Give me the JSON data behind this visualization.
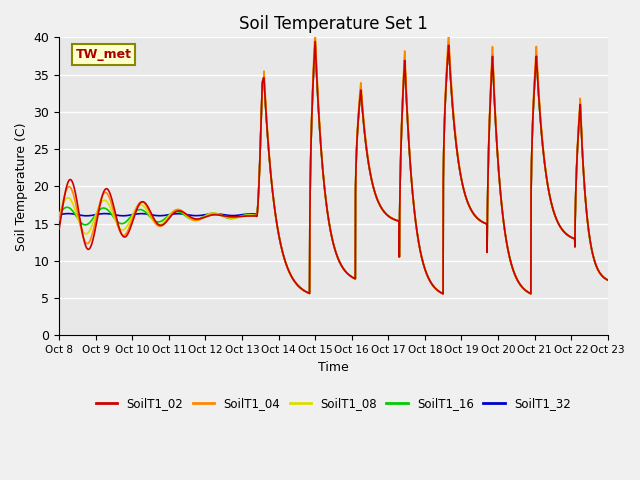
{
  "title": "Soil Temperature Set 1",
  "xlabel": "Time",
  "ylabel": "Soil Temperature (C)",
  "xlim": [
    0,
    15
  ],
  "ylim": [
    0,
    40
  ],
  "yticks": [
    0,
    5,
    10,
    15,
    20,
    25,
    30,
    35,
    40
  ],
  "xtick_labels": [
    "Oct 8",
    "Oct 9",
    "Oct 10",
    "Oct 11",
    "Oct 12",
    "Oct 13",
    "Oct 14",
    "Oct 15",
    "Oct 16",
    "Oct 17",
    "Oct 18",
    "Oct 19",
    "Oct 20",
    "Oct 21",
    "Oct 22",
    "Oct 23"
  ],
  "series_colors": {
    "SoilT1_02": "#cc0000",
    "SoilT1_04": "#ff8800",
    "SoilT1_08": "#dddd00",
    "SoilT1_16": "#00cc00",
    "SoilT1_32": "#0000cc"
  },
  "annotation_text": "TW_met",
  "annotation_color": "#aa0000",
  "annotation_bg": "#ffffcc",
  "annotation_border": "#888800",
  "plot_bg": "#e8e8e8",
  "fig_bg": "#f0f0f0",
  "grid_color": "#ffffff",
  "title_fontsize": 12
}
